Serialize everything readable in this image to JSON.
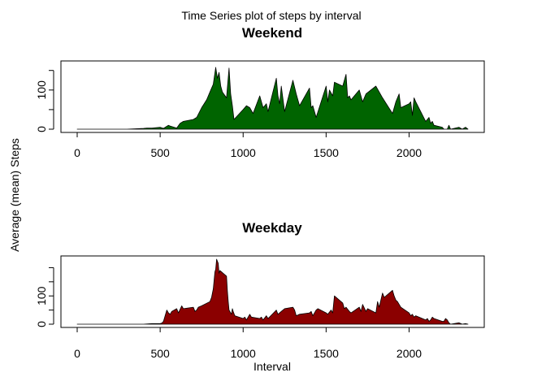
{
  "figure": {
    "title": "Time Series plot of steps by interval",
    "shared_ylabel": "Average (mean) Steps",
    "shared_xlabel": "Interval"
  },
  "chart_data": [
    {
      "type": "area",
      "title": "Weekend",
      "fill_color": "#006400",
      "xlabel": "",
      "ylabel": "Average (mean) Steps",
      "xlim": [
        0,
        2355
      ],
      "ylim": [
        0,
        166
      ],
      "x_ticks": [
        0,
        500,
        1000,
        1500,
        2000
      ],
      "y_ticks": [
        0,
        100
      ],
      "series": [
        {
          "x": [
            0,
            100,
            200,
            300,
            400,
            420,
            450,
            500,
            520,
            550,
            560,
            600,
            620,
            640,
            700,
            720,
            750,
            780,
            800,
            820,
            835,
            845,
            855,
            865,
            875,
            900,
            915,
            925,
            935,
            945,
            1000,
            1020,
            1040,
            1060,
            1100,
            1120,
            1140,
            1150,
            1200,
            1210,
            1220,
            1230,
            1250,
            1300,
            1320,
            1340,
            1400,
            1410,
            1420,
            1440,
            1500,
            1510,
            1520,
            1540,
            1550,
            1600,
            1610,
            1620,
            1630,
            1640,
            1650,
            1700,
            1720,
            1740,
            1800,
            1820,
            1840,
            1900,
            1920,
            1940,
            1950,
            2000,
            2010,
            2020,
            2030,
            2040,
            2100,
            2110,
            2120,
            2130,
            2140,
            2150,
            2200,
            2210,
            2220,
            2230,
            2240,
            2250,
            2300,
            2320,
            2340,
            2355
          ],
          "y": [
            0,
            0,
            0,
            0,
            2,
            3,
            3,
            5,
            2,
            10,
            8,
            3,
            15,
            20,
            25,
            30,
            55,
            75,
            95,
            115,
            158,
            130,
            145,
            110,
            95,
            80,
            156,
            90,
            60,
            25,
            50,
            60,
            55,
            40,
            85,
            55,
            65,
            45,
            130,
            85,
            65,
            110,
            45,
            125,
            90,
            60,
            105,
            55,
            60,
            30,
            110,
            70,
            100,
            85,
            120,
            110,
            125,
            140,
            80,
            85,
            75,
            100,
            70,
            90,
            110,
            95,
            80,
            40,
            70,
            90,
            55,
            65,
            70,
            35,
            80,
            70,
            20,
            25,
            30,
            15,
            20,
            10,
            5,
            0,
            0,
            0,
            10,
            0,
            5,
            0,
            5,
            0
          ]
        }
      ]
    },
    {
      "type": "area",
      "title": "Weekday",
      "fill_color": "#8B0000",
      "xlabel": "Interval",
      "ylabel": "Average (mean) Steps",
      "xlim": [
        0,
        2355
      ],
      "ylim": [
        0,
        230
      ],
      "x_ticks": [
        0,
        500,
        1000,
        1500,
        2000
      ],
      "y_ticks": [
        0,
        100
      ],
      "series": [
        {
          "x": [
            0,
            100,
            200,
            300,
            400,
            450,
            500,
            510,
            520,
            540,
            550,
            560,
            570,
            600,
            610,
            630,
            640,
            700,
            710,
            720,
            730,
            750,
            800,
            810,
            820,
            830,
            835,
            840,
            850,
            855,
            860,
            900,
            905,
            910,
            915,
            930,
            935,
            940,
            950,
            1000,
            1010,
            1020,
            1040,
            1050,
            1100,
            1110,
            1120,
            1140,
            1150,
            1200,
            1210,
            1230,
            1250,
            1300,
            1310,
            1320,
            1340,
            1400,
            1410,
            1420,
            1430,
            1440,
            1450,
            1500,
            1510,
            1530,
            1540,
            1550,
            1600,
            1610,
            1620,
            1640,
            1650,
            1700,
            1710,
            1720,
            1740,
            1750,
            1800,
            1810,
            1820,
            1840,
            1850,
            1900,
            1910,
            1920,
            1930,
            1950,
            2000,
            2010,
            2020,
            2030,
            2040,
            2100,
            2110,
            2120,
            2130,
            2140,
            2150,
            2200,
            2210,
            2220,
            2230,
            2240,
            2250,
            2300,
            2320,
            2340,
            2355
          ],
          "y": [
            0,
            0,
            0,
            0,
            0,
            2,
            2,
            4,
            10,
            50,
            40,
            35,
            45,
            55,
            40,
            65,
            55,
            60,
            45,
            50,
            60,
            65,
            80,
            95,
            125,
            185,
            195,
            230,
            215,
            180,
            190,
            170,
            120,
            80,
            50,
            35,
            55,
            45,
            30,
            20,
            25,
            15,
            35,
            25,
            20,
            25,
            15,
            30,
            20,
            50,
            35,
            45,
            55,
            60,
            50,
            30,
            35,
            40,
            45,
            30,
            40,
            50,
            55,
            40,
            35,
            50,
            40,
            100,
            75,
            55,
            60,
            45,
            40,
            60,
            45,
            70,
            45,
            55,
            40,
            80,
            60,
            110,
            95,
            120,
            100,
            85,
            80,
            60,
            40,
            30,
            35,
            25,
            30,
            15,
            20,
            10,
            15,
            25,
            20,
            10,
            10,
            20,
            15,
            5,
            0,
            5,
            0,
            2,
            0
          ]
        }
      ]
    }
  ]
}
